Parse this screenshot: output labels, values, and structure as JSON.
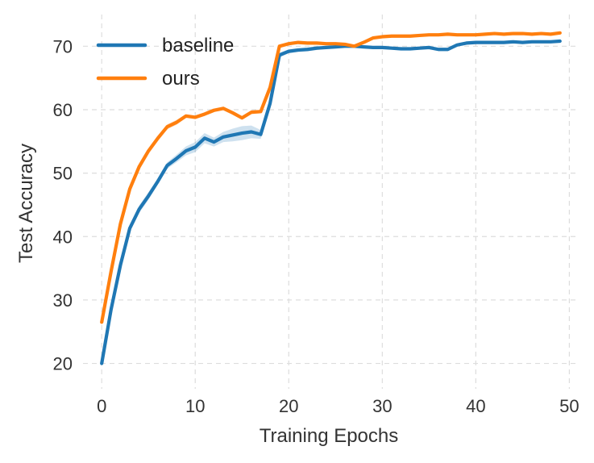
{
  "chart_data": {
    "type": "line",
    "title": "",
    "xlabel": "Training Epochs",
    "ylabel": "Test Accuracy",
    "xlim": [
      -2,
      51
    ],
    "ylim": [
      16,
      75
    ],
    "xticks": [
      0,
      10,
      20,
      30,
      40,
      50
    ],
    "yticks": [
      20,
      30,
      40,
      50,
      60,
      70
    ],
    "grid": true,
    "legend_position": "top-left",
    "series": [
      {
        "name": "baseline",
        "color": "#1f77b4",
        "x": [
          0,
          1,
          2,
          3,
          4,
          5,
          6,
          7,
          8,
          9,
          10,
          11,
          12,
          13,
          14,
          15,
          16,
          17,
          18,
          19,
          20,
          21,
          22,
          23,
          24,
          25,
          26,
          27,
          28,
          29,
          30,
          31,
          32,
          33,
          34,
          35,
          36,
          37,
          38,
          39,
          40,
          41,
          42,
          43,
          44,
          45,
          46,
          47,
          48,
          49
        ],
        "y": [
          20.0,
          28.5,
          35.5,
          41.3,
          44.3,
          46.4,
          48.7,
          51.2,
          52.3,
          53.5,
          54.1,
          55.5,
          54.9,
          55.7,
          56.0,
          56.3,
          56.5,
          56.1,
          61.0,
          68.6,
          69.2,
          69.4,
          69.5,
          69.7,
          69.8,
          69.9,
          70.0,
          70.0,
          69.9,
          69.8,
          69.8,
          69.7,
          69.6,
          69.6,
          69.7,
          69.8,
          69.5,
          69.5,
          70.2,
          70.5,
          70.6,
          70.6,
          70.6,
          70.6,
          70.7,
          70.6,
          70.7,
          70.7,
          70.7,
          70.8
        ],
        "band": [
          0.3,
          0.6,
          0.5,
          0.5,
          0.6,
          0.6,
          0.5,
          0.5,
          0.6,
          0.7,
          0.8,
          0.8,
          0.7,
          0.8,
          1.0,
          1.1,
          1.0,
          0.7,
          0.6,
          0.4,
          0.3,
          0.3,
          0.3,
          0.3,
          0.2,
          0.2,
          0.2,
          0.2,
          0.2,
          0.2,
          0.2,
          0.2,
          0.2,
          0.2,
          0.2,
          0.2,
          0.2,
          0.2,
          0.2,
          0.2,
          0.2,
          0.2,
          0.2,
          0.2,
          0.2,
          0.2,
          0.2,
          0.2,
          0.2,
          0.2
        ]
      },
      {
        "name": "ours",
        "color": "#ff7f0e",
        "x": [
          0,
          1,
          2,
          3,
          4,
          5,
          6,
          7,
          8,
          9,
          10,
          11,
          12,
          13,
          14,
          15,
          16,
          17,
          18,
          19,
          20,
          21,
          22,
          23,
          24,
          25,
          26,
          27,
          28,
          29,
          30,
          31,
          32,
          33,
          34,
          35,
          36,
          37,
          38,
          39,
          40,
          41,
          42,
          43,
          44,
          45,
          46,
          47,
          48,
          49
        ],
        "y": [
          26.5,
          34.5,
          42.0,
          47.5,
          51.0,
          53.5,
          55.5,
          57.3,
          58.0,
          59.0,
          58.8,
          59.3,
          59.9,
          60.2,
          59.5,
          58.7,
          59.6,
          59.7,
          63.5,
          70.0,
          70.4,
          70.6,
          70.5,
          70.5,
          70.4,
          70.4,
          70.3,
          70.0,
          70.6,
          71.3,
          71.5,
          71.6,
          71.6,
          71.6,
          71.7,
          71.8,
          71.8,
          71.9,
          71.8,
          71.8,
          71.8,
          71.9,
          72.0,
          71.9,
          72.0,
          72.0,
          71.9,
          72.0,
          71.9,
          72.1
        ],
        "band": [
          0.2,
          0.3,
          0.3,
          0.3,
          0.3,
          0.3,
          0.3,
          0.4,
          0.4,
          0.3,
          0.3,
          0.3,
          0.3,
          0.3,
          0.3,
          0.3,
          0.3,
          0.3,
          0.3,
          0.2,
          0.2,
          0.2,
          0.2,
          0.2,
          0.2,
          0.2,
          0.2,
          0.2,
          0.2,
          0.2,
          0.2,
          0.2,
          0.2,
          0.2,
          0.2,
          0.2,
          0.2,
          0.2,
          0.2,
          0.2,
          0.2,
          0.2,
          0.2,
          0.2,
          0.2,
          0.2,
          0.2,
          0.2,
          0.2,
          0.2
        ]
      }
    ]
  }
}
